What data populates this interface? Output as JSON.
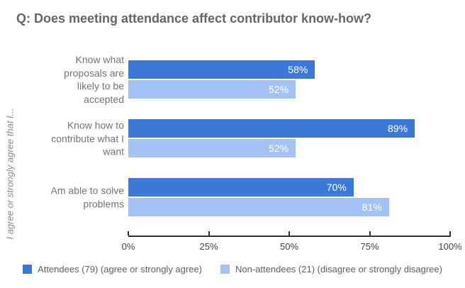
{
  "title": "Q: Does meeting attendance affect contributor know-how?",
  "chart_data": {
    "type": "bar",
    "orientation": "horizontal",
    "title": "Q: Does meeting attendance affect contributor know-how?",
    "ylabel": "I agree or strongly agree that I...",
    "xlabel": "",
    "xlim": [
      0,
      100
    ],
    "grid": false,
    "legend_position": "bottom",
    "x_ticks": [
      {
        "value": 0,
        "label": "0%"
      },
      {
        "value": 25,
        "label": "25%"
      },
      {
        "value": 50,
        "label": "50%"
      },
      {
        "value": 75,
        "label": "75%"
      },
      {
        "value": 100,
        "label": "100%"
      }
    ],
    "categories": [
      {
        "label": "Know what proposals are likely to be accepted",
        "lines": [
          "Know what",
          "proposals are",
          "likely to be",
          "accepted"
        ]
      },
      {
        "label": "Know how to contribute what I want",
        "lines": [
          "Know how to",
          "contribute what I",
          "want"
        ]
      },
      {
        "label": "Am able to solve problems",
        "lines": [
          "Am able to solve",
          "problems"
        ]
      }
    ],
    "series": [
      {
        "key": "attendees",
        "name": "Attendees (79) (agree or strongly agree)",
        "color": "#3c78d8",
        "values": [
          58,
          89,
          70
        ],
        "labels": [
          "58%",
          "89%",
          "70%"
        ]
      },
      {
        "key": "non-attendees",
        "name": "Non-attendees (21) (disagree or strongly disagree)",
        "color": "#a4c2f4",
        "values": [
          52,
          52,
          81
        ],
        "labels": [
          "52%",
          "52%",
          "81%"
        ]
      }
    ]
  },
  "colors": {
    "series_attendees": "#3c78d8",
    "series_non_attendees": "#a4c2f4",
    "title_text": "#666666",
    "category_text": "#757575",
    "axis_text": "#444444",
    "axis_line": "#333333",
    "legend_text": "#616161",
    "value_label_text": "#ffffff",
    "background": "#ffffff"
  }
}
